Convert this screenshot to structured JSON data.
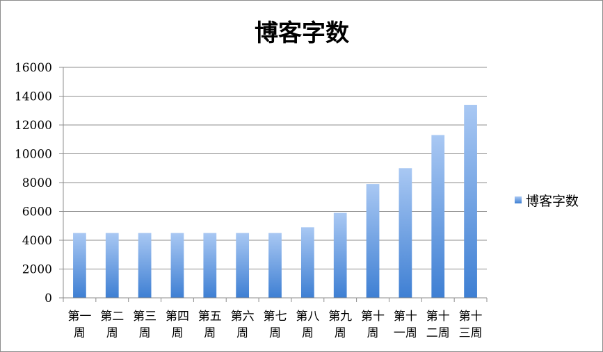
{
  "chart_data": {
    "type": "bar",
    "title": "博客字数",
    "categories": [
      [
        "第一",
        "周"
      ],
      [
        "第二",
        "周"
      ],
      [
        "第三",
        "周"
      ],
      [
        "第四",
        "周"
      ],
      [
        "第五",
        "周"
      ],
      [
        "第六",
        "周"
      ],
      [
        "第七",
        "周"
      ],
      [
        "第八",
        "周"
      ],
      [
        "第九",
        "周"
      ],
      [
        "第十",
        "周"
      ],
      [
        "第十",
        "一周"
      ],
      [
        "第十",
        "二周"
      ],
      [
        "第十",
        "三周"
      ]
    ],
    "series": [
      {
        "name": "博客字数",
        "values": [
          4500,
          4500,
          4500,
          4500,
          4500,
          4500,
          4500,
          4900,
          5900,
          7900,
          9000,
          11300,
          13400
        ]
      }
    ],
    "ylim": [
      0,
      16000
    ],
    "yticks": [
      0,
      2000,
      4000,
      6000,
      8000,
      10000,
      12000,
      14000,
      16000
    ],
    "grid": true,
    "legend_position": "right",
    "colors": {
      "bar_top": "#a9c8f3",
      "bar_bottom": "#3e7fd3",
      "grid": "#8c8c8c",
      "axis": "#8c8c8c"
    }
  }
}
